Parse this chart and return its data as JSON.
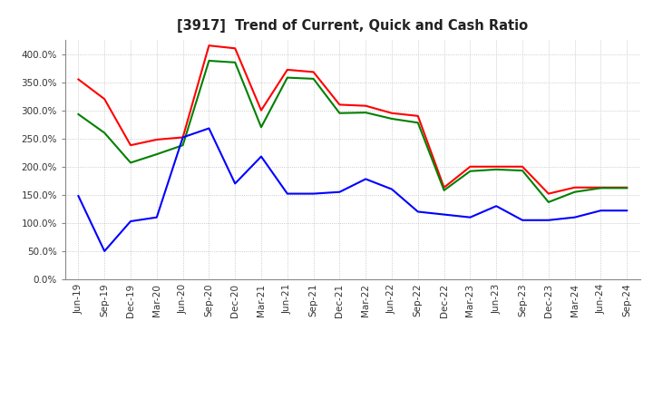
{
  "title": "[3917]  Trend of Current, Quick and Cash Ratio",
  "x_labels": [
    "Jun-19",
    "Sep-19",
    "Dec-19",
    "Mar-20",
    "Jun-20",
    "Sep-20",
    "Dec-20",
    "Mar-21",
    "Jun-21",
    "Sep-21",
    "Dec-21",
    "Mar-22",
    "Jun-22",
    "Sep-22",
    "Dec-22",
    "Mar-23",
    "Jun-23",
    "Sep-23",
    "Dec-23",
    "Mar-24",
    "Jun-24",
    "Sep-24"
  ],
  "current_ratio": [
    355,
    320,
    238,
    248,
    252,
    415,
    410,
    300,
    372,
    368,
    310,
    308,
    295,
    290,
    163,
    200,
    200,
    200,
    152,
    163,
    163,
    163
  ],
  "quick_ratio": [
    293,
    260,
    207,
    222,
    238,
    388,
    385,
    270,
    358,
    356,
    295,
    296,
    285,
    278,
    158,
    192,
    195,
    193,
    137,
    155,
    162,
    162
  ],
  "cash_ratio": [
    148,
    50,
    103,
    110,
    252,
    268,
    170,
    218,
    152,
    152,
    155,
    178,
    160,
    120,
    115,
    110,
    130,
    105,
    105,
    110,
    122,
    122
  ],
  "ylim": [
    0,
    425
  ],
  "yticks": [
    0,
    50,
    100,
    150,
    200,
    250,
    300,
    350,
    400
  ],
  "current_color": "#FF0000",
  "quick_color": "#008000",
  "cash_color": "#0000FF",
  "bg_color": "#FFFFFF",
  "grid_color": "#BBBBBB",
  "line_width": 1.5
}
